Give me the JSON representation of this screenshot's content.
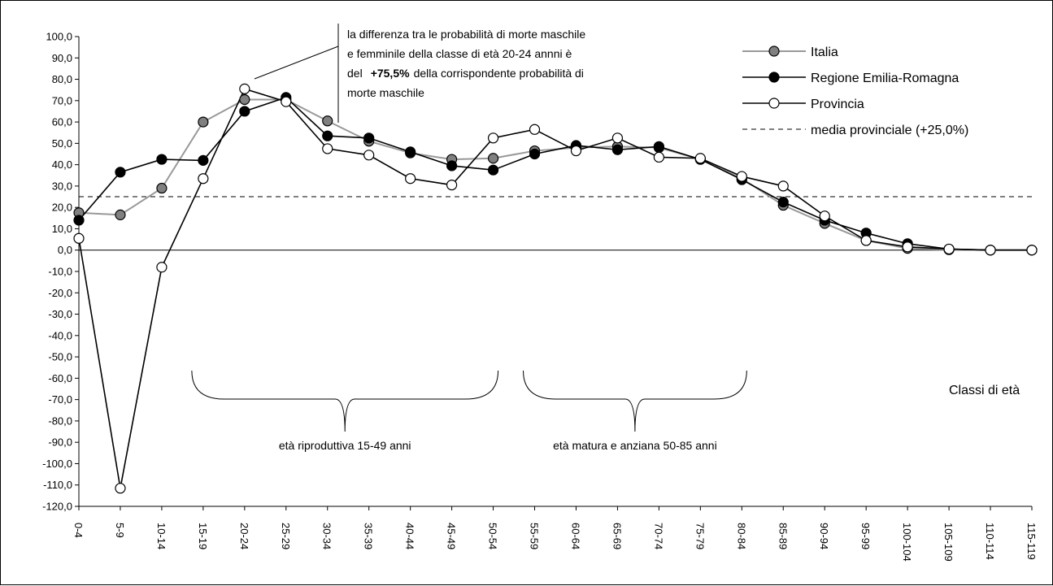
{
  "chart_data": {
    "type": "line",
    "categories": [
      "0-4",
      "5-9",
      "10-14",
      "15-19",
      "20-24",
      "25-29",
      "30-34",
      "35-39",
      "40-44",
      "45-49",
      "50-54",
      "55-59",
      "60-64",
      "65-69",
      "70-74",
      "75-79",
      "80-84",
      "85-89",
      "90-94",
      "95-99",
      "100-104",
      "105-109",
      "110-114",
      "115-119"
    ],
    "ylim": [
      -120,
      100
    ],
    "ytick_step": 10,
    "ytick_format": "one-decimal-comma",
    "xlabel": "Classi di età",
    "series": [
      {
        "name": "Italia",
        "marker": "gray",
        "line_color": "#999999",
        "marker_fill": "#808080",
        "values": [
          17.5,
          16.5,
          29.0,
          60.0,
          70.5,
          70.5,
          60.5,
          51.0,
          45.5,
          42.5,
          43.0,
          46.5,
          48.0,
          48.5,
          48.0,
          42.5,
          33.5,
          21.0,
          12.5,
          4.5,
          0.8,
          0.2,
          0.0,
          0.0
        ]
      },
      {
        "name": "Regione Emilia-Romagna",
        "marker": "black",
        "line_color": "#000000",
        "marker_fill": "#000000",
        "values": [
          14.0,
          36.5,
          42.5,
          42.0,
          65.0,
          71.5,
          53.5,
          52.5,
          46.0,
          39.5,
          37.5,
          45.0,
          49.0,
          47.0,
          48.5,
          42.5,
          33.0,
          22.5,
          14.0,
          8.0,
          3.0,
          0.5,
          0.0,
          0.0
        ]
      },
      {
        "name": "Provincia",
        "marker": "white",
        "line_color": "#000000",
        "marker_fill": "#ffffff",
        "values": [
          5.5,
          -111.5,
          -8.0,
          33.5,
          75.5,
          69.5,
          47.5,
          44.5,
          33.5,
          30.5,
          52.5,
          56.5,
          46.5,
          52.5,
          43.5,
          43.0,
          34.5,
          30.0,
          16.0,
          4.5,
          1.5,
          0.5,
          0.0,
          0.0
        ]
      }
    ],
    "reference_line": {
      "name": "media provinciale (+25,0%)",
      "value": 25.0,
      "style": "dashed"
    },
    "legend": {
      "placement": "top-right"
    },
    "annotation": {
      "line1": "la differenza tra le probabilità di morte maschile",
      "line2": "e femminile della classe di età 20-24 annni è",
      "line3_prefix": "del",
      "line3_bold": "+75,5%",
      "line3_suffix": "della corrispondente probabilità di",
      "line4": "morte maschile"
    },
    "braces": [
      {
        "label": "età riproduttiva 15-49 anni",
        "from": "15-19",
        "to": "50-54"
      },
      {
        "label": "età matura e anziana 50-85 anni",
        "from": "55-59",
        "to": "80-84"
      }
    ]
  }
}
